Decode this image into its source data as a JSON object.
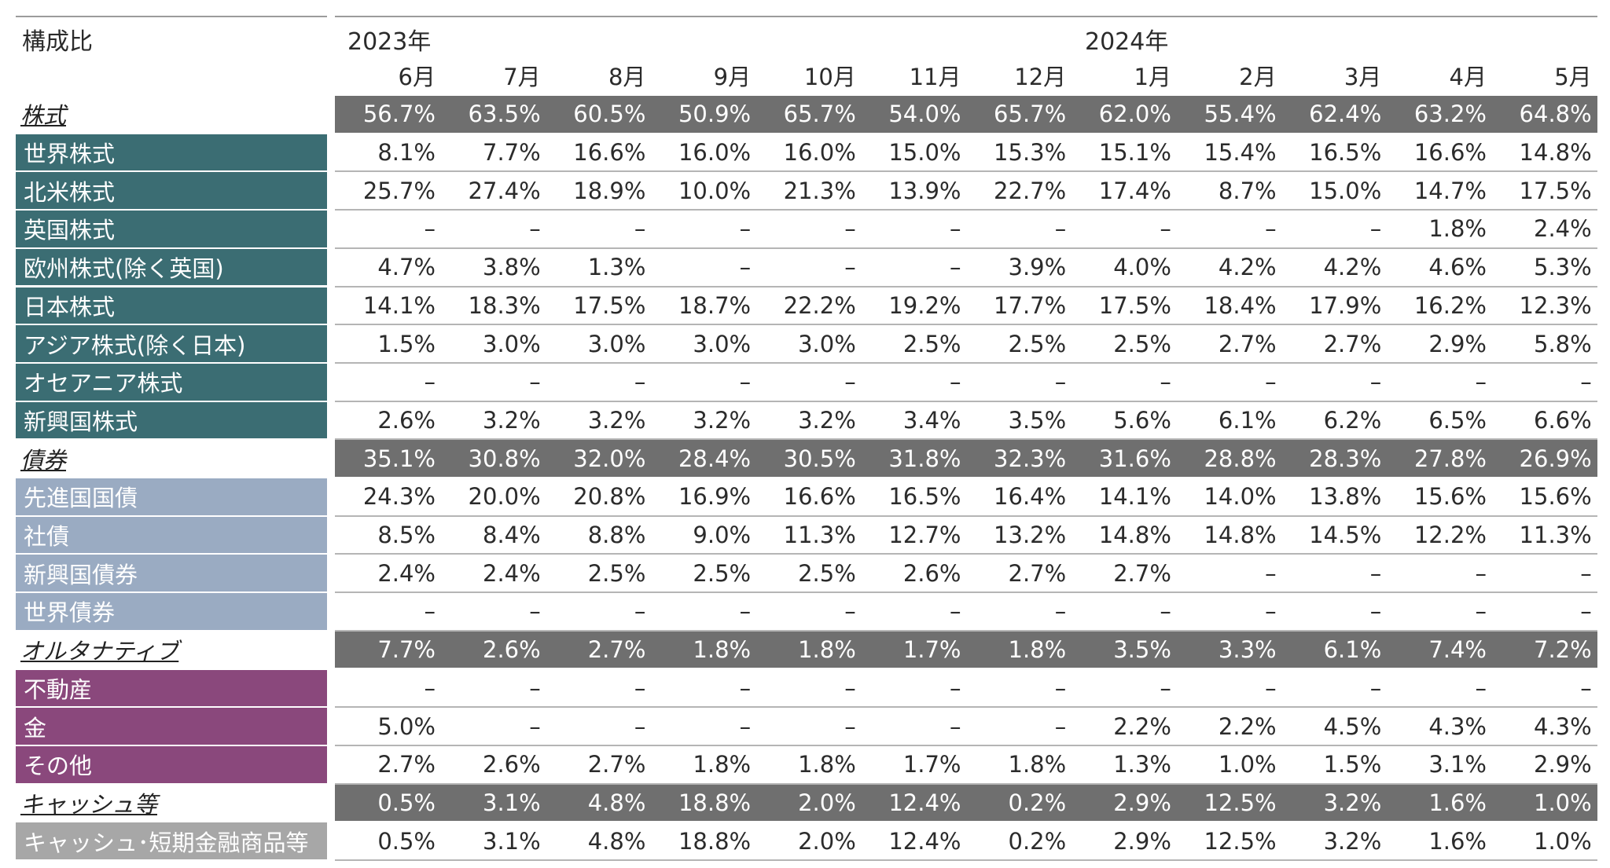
{
  "header": {
    "table_label": "構成比",
    "year_2023": "2023年",
    "year_2024": "2024年",
    "months": [
      "6月",
      "7月",
      "8月",
      "9月",
      "10月",
      "11月",
      "12月",
      "1月",
      "2月",
      "3月",
      "4月",
      "5月"
    ]
  },
  "rows": [
    {
      "label": "株式",
      "kind": "category",
      "values": [
        "56.7%",
        "63.5%",
        "60.5%",
        "50.9%",
        "65.7%",
        "54.0%",
        "65.7%",
        "62.0%",
        "55.4%",
        "62.4%",
        "63.2%",
        "64.8%"
      ]
    },
    {
      "label": "世界株式",
      "kind": "equity",
      "values": [
        "8.1%",
        "7.7%",
        "16.6%",
        "16.0%",
        "16.0%",
        "15.0%",
        "15.3%",
        "15.1%",
        "15.4%",
        "16.5%",
        "16.6%",
        "14.8%"
      ]
    },
    {
      "label": "北米株式",
      "kind": "equity",
      "values": [
        "25.7%",
        "27.4%",
        "18.9%",
        "10.0%",
        "21.3%",
        "13.9%",
        "22.7%",
        "17.4%",
        "8.7%",
        "15.0%",
        "14.7%",
        "17.5%"
      ]
    },
    {
      "label": "英国株式",
      "kind": "equity",
      "values": [
        "–",
        "–",
        "–",
        "–",
        "–",
        "–",
        "–",
        "–",
        "–",
        "–",
        "1.8%",
        "2.4%"
      ]
    },
    {
      "label": "欧州株式(除く英国)",
      "kind": "equity",
      "values": [
        "4.7%",
        "3.8%",
        "1.3%",
        "–",
        "–",
        "–",
        "3.9%",
        "4.0%",
        "4.2%",
        "4.2%",
        "4.6%",
        "5.3%"
      ]
    },
    {
      "label": "日本株式",
      "kind": "equity",
      "values": [
        "14.1%",
        "18.3%",
        "17.5%",
        "18.7%",
        "22.2%",
        "19.2%",
        "17.7%",
        "17.5%",
        "18.4%",
        "17.9%",
        "16.2%",
        "12.3%"
      ]
    },
    {
      "label": "アジア株式(除く日本)",
      "kind": "equity",
      "values": [
        "1.5%",
        "3.0%",
        "3.0%",
        "3.0%",
        "3.0%",
        "2.5%",
        "2.5%",
        "2.5%",
        "2.7%",
        "2.7%",
        "2.9%",
        "5.8%"
      ]
    },
    {
      "label": "オセアニア株式",
      "kind": "equity",
      "values": [
        "–",
        "–",
        "–",
        "–",
        "–",
        "–",
        "–",
        "–",
        "–",
        "–",
        "–",
        "–"
      ]
    },
    {
      "label": "新興国株式",
      "kind": "equity",
      "values": [
        "2.6%",
        "3.2%",
        "3.2%",
        "3.2%",
        "3.2%",
        "3.4%",
        "3.5%",
        "5.6%",
        "6.1%",
        "6.2%",
        "6.5%",
        "6.6%"
      ]
    },
    {
      "label": "債券",
      "kind": "category",
      "values": [
        "35.1%",
        "30.8%",
        "32.0%",
        "28.4%",
        "30.5%",
        "31.8%",
        "32.3%",
        "31.6%",
        "28.8%",
        "28.3%",
        "27.8%",
        "26.9%"
      ]
    },
    {
      "label": "先進国国債",
      "kind": "bond",
      "values": [
        "24.3%",
        "20.0%",
        "20.8%",
        "16.9%",
        "16.6%",
        "16.5%",
        "16.4%",
        "14.1%",
        "14.0%",
        "13.8%",
        "15.6%",
        "15.6%"
      ]
    },
    {
      "label": "社債",
      "kind": "bond",
      "values": [
        "8.5%",
        "8.4%",
        "8.8%",
        "9.0%",
        "11.3%",
        "12.7%",
        "13.2%",
        "14.8%",
        "14.8%",
        "14.5%",
        "12.2%",
        "11.3%"
      ]
    },
    {
      "label": "新興国債券",
      "kind": "bond",
      "values": [
        "2.4%",
        "2.4%",
        "2.5%",
        "2.5%",
        "2.5%",
        "2.6%",
        "2.7%",
        "2.7%",
        "–",
        "–",
        "–",
        "–"
      ]
    },
    {
      "label": "世界債券",
      "kind": "bond",
      "values": [
        "–",
        "–",
        "–",
        "–",
        "–",
        "–",
        "–",
        "–",
        "–",
        "–",
        "–",
        "–"
      ]
    },
    {
      "label": "オルタナティブ",
      "kind": "category",
      "values": [
        "7.7%",
        "2.6%",
        "2.7%",
        "1.8%",
        "1.8%",
        "1.7%",
        "1.8%",
        "3.5%",
        "3.3%",
        "6.1%",
        "7.4%",
        "7.2%"
      ]
    },
    {
      "label": "不動産",
      "kind": "alt",
      "values": [
        "–",
        "–",
        "–",
        "–",
        "–",
        "–",
        "–",
        "–",
        "–",
        "–",
        "–",
        "–"
      ]
    },
    {
      "label": "金",
      "kind": "alt",
      "values": [
        "5.0%",
        "–",
        "–",
        "–",
        "–",
        "–",
        "–",
        "2.2%",
        "2.2%",
        "4.5%",
        "4.3%",
        "4.3%"
      ]
    },
    {
      "label": "その他",
      "kind": "alt",
      "values": [
        "2.7%",
        "2.6%",
        "2.7%",
        "1.8%",
        "1.8%",
        "1.7%",
        "1.8%",
        "1.3%",
        "1.0%",
        "1.5%",
        "3.1%",
        "2.9%"
      ]
    },
    {
      "label": "キャッシュ等",
      "kind": "category",
      "values": [
        "0.5%",
        "3.1%",
        "4.8%",
        "18.8%",
        "2.0%",
        "12.4%",
        "0.2%",
        "2.9%",
        "12.5%",
        "3.2%",
        "1.6%",
        "1.0%"
      ]
    },
    {
      "label": "キャッシュ･短期金融商品等",
      "kind": "cash",
      "values": [
        "0.5%",
        "3.1%",
        "4.8%",
        "18.8%",
        "2.0%",
        "12.4%",
        "0.2%",
        "2.9%",
        "12.5%",
        "3.2%",
        "1.6%",
        "1.0%"
      ]
    }
  ]
}
